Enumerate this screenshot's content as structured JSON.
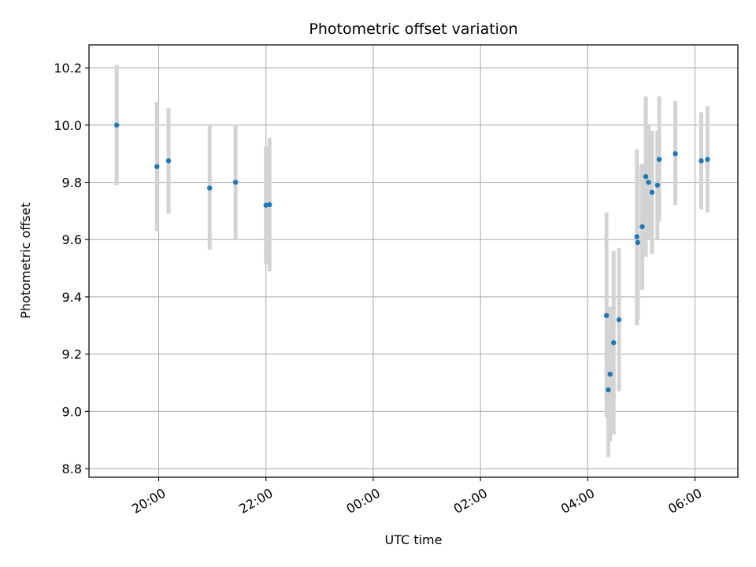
{
  "chart_data": {
    "type": "scatter",
    "title": "Photometric offset variation",
    "xlabel": "UTC time",
    "ylabel": "Photometric offset",
    "x_tick_labels": [
      "20:00",
      "22:00",
      "00:00",
      "02:00",
      "04:00",
      "06:00"
    ],
    "x_tick_hours": [
      20,
      22,
      24,
      26,
      28,
      30
    ],
    "y_ticks": [
      8.8,
      9.0,
      9.2,
      9.4,
      9.6,
      9.8,
      10.0,
      10.2
    ],
    "y_tick_labels": [
      "8.8",
      "9.0",
      "9.2",
      "9.4",
      "9.6",
      "9.8",
      "10.0",
      "10.2"
    ],
    "xlim_hours": [
      18.7,
      30.8
    ],
    "ylim": [
      8.77,
      10.28
    ],
    "grid": true,
    "colors": {
      "points": "#1f77b4",
      "errorbars": "#d3d3d3",
      "grid": "#b0b0b0"
    },
    "points": [
      {
        "time": "19:13",
        "y": 10.0,
        "err_low": 9.79,
        "err_high": 10.21
      },
      {
        "time": "19:58",
        "y": 9.855,
        "err_low": 9.63,
        "err_high": 10.08
      },
      {
        "time": "20:11",
        "y": 9.875,
        "err_low": 9.69,
        "err_high": 10.06
      },
      {
        "time": "20:57",
        "y": 9.78,
        "err_low": 9.565,
        "err_high": 10.0
      },
      {
        "time": "21:26",
        "y": 9.8,
        "err_low": 9.6,
        "err_high": 10.0
      },
      {
        "time": "22:00",
        "y": 9.72,
        "err_low": 9.515,
        "err_high": 9.925
      },
      {
        "time": "22:04",
        "y": 9.722,
        "err_low": 9.49,
        "err_high": 9.955
      },
      {
        "time": "04:21",
        "y": 9.335,
        "err_low": 8.98,
        "err_high": 9.695
      },
      {
        "time": "04:23",
        "y": 9.075,
        "err_low": 8.84,
        "err_high": 9.31
      },
      {
        "time": "04:25",
        "y": 9.13,
        "err_low": 8.895,
        "err_high": 9.365
      },
      {
        "time": "04:29",
        "y": 9.24,
        "err_low": 8.92,
        "err_high": 9.56
      },
      {
        "time": "04:35",
        "y": 9.32,
        "err_low": 9.07,
        "err_high": 9.57
      },
      {
        "time": "04:55",
        "y": 9.61,
        "err_low": 9.3,
        "err_high": 9.915
      },
      {
        "time": "04:56",
        "y": 9.59,
        "err_low": 9.32,
        "err_high": 9.86
      },
      {
        "time": "05:01",
        "y": 9.645,
        "err_low": 9.425,
        "err_high": 9.865
      },
      {
        "time": "05:05",
        "y": 9.82,
        "err_low": 9.54,
        "err_high": 10.1
      },
      {
        "time": "05:08",
        "y": 9.8,
        "err_low": 9.6,
        "err_high": 10.0
      },
      {
        "time": "05:12",
        "y": 9.765,
        "err_low": 9.55,
        "err_high": 9.98
      },
      {
        "time": "05:18",
        "y": 9.79,
        "err_low": 9.6,
        "err_high": 9.98
      },
      {
        "time": "05:20",
        "y": 9.88,
        "err_low": 9.665,
        "err_high": 10.1
      },
      {
        "time": "05:38",
        "y": 9.9,
        "err_low": 9.72,
        "err_high": 10.085
      },
      {
        "time": "06:07",
        "y": 9.875,
        "err_low": 9.705,
        "err_high": 10.045
      },
      {
        "time": "06:14",
        "y": 9.88,
        "err_low": 9.695,
        "err_high": 10.065
      }
    ]
  }
}
